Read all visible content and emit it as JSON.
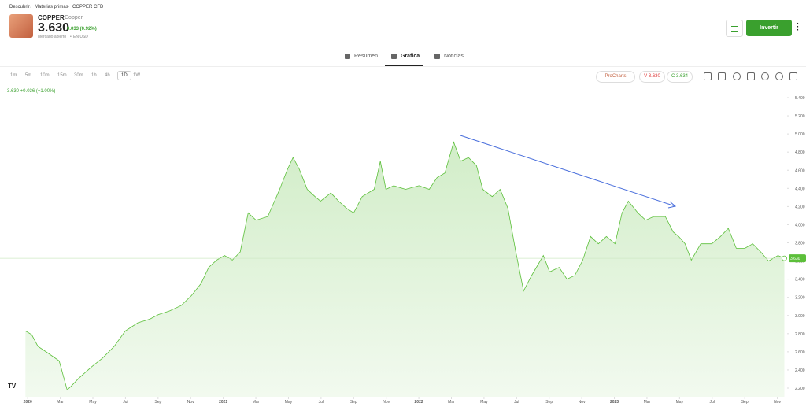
{
  "breadcrumb": [
    "Descubrir",
    "Materias primas",
    "COPPER CFD"
  ],
  "instrument": {
    "name": "COPPER",
    "subtitle": "Copper",
    "price": "3.630",
    "change": "0.033 (0.92%)",
    "status": "Mercado abierto",
    "currency": "EN USD"
  },
  "invest_button": "Invertir",
  "tabs": [
    "Resumen",
    "Gráfica",
    "Noticias"
  ],
  "timeframes": [
    "1m",
    "5m",
    "10m",
    "15m",
    "30m",
    "1h",
    "4h",
    "1D",
    "1W"
  ],
  "toolbar": {
    "procharts": "ProCharts",
    "sell": "V 3.630",
    "buy": "C 3.634"
  },
  "chart_data": {
    "type": "area",
    "legend": "3.630 +0.036 (+1.00%)",
    "color": "#5cbf3a",
    "price_tag": {
      "value": 3.63,
      "label": "3.630"
    },
    "xlim": [
      -1.7,
      46.6
    ],
    "ylim": [
      2.12,
      5.52
    ],
    "xticks": [
      {
        "value": 0,
        "label": "2020"
      },
      {
        "value": 2,
        "label": "Mar"
      },
      {
        "value": 4,
        "label": "May"
      },
      {
        "value": 6,
        "label": "Jul"
      },
      {
        "value": 8,
        "label": "Sep"
      },
      {
        "value": 10,
        "label": "Nov"
      },
      {
        "value": 12,
        "label": "2021"
      },
      {
        "value": 14,
        "label": "Mar"
      },
      {
        "value": 16,
        "label": "May"
      },
      {
        "value": 18,
        "label": "Jul"
      },
      {
        "value": 20,
        "label": "Sep"
      },
      {
        "value": 22,
        "label": "Nov"
      },
      {
        "value": 24,
        "label": "2022"
      },
      {
        "value": 26,
        "label": "Mar"
      },
      {
        "value": 28,
        "label": "May"
      },
      {
        "value": 30,
        "label": "Jul"
      },
      {
        "value": 32,
        "label": "Sep"
      },
      {
        "value": 34,
        "label": "Nov"
      },
      {
        "value": 36,
        "label": "2023"
      },
      {
        "value": 38,
        "label": "Mar"
      },
      {
        "value": 40,
        "label": "May"
      },
      {
        "value": 42,
        "label": "Jul"
      },
      {
        "value": 44,
        "label": "Sep"
      },
      {
        "value": 46,
        "label": "Nov"
      }
    ],
    "yticks": [
      {
        "value": 2.2,
        "label": "2.200"
      },
      {
        "value": 2.4,
        "label": "2.400"
      },
      {
        "value": 2.6,
        "label": "2.600"
      },
      {
        "value": 2.8,
        "label": "2.800"
      },
      {
        "value": 3.0,
        "label": "3.000"
      },
      {
        "value": 3.2,
        "label": "3.200"
      },
      {
        "value": 3.4,
        "label": "3.400"
      },
      {
        "value": 3.6,
        "label": "3.600"
      },
      {
        "value": 3.8,
        "label": "3.800"
      },
      {
        "value": 4.0,
        "label": "4.000"
      },
      {
        "value": 4.2,
        "label": "4.200"
      },
      {
        "value": 4.4,
        "label": "4.400"
      },
      {
        "value": 4.6,
        "label": "4.600"
      },
      {
        "value": 4.8,
        "label": "4.800"
      },
      {
        "value": 5.0,
        "label": "5.000"
      },
      {
        "value": 5.2,
        "label": "5.200"
      },
      {
        "value": 5.4,
        "label": "5.400"
      }
    ],
    "x": [
      -0.14,
      0.24,
      0.63,
      1.21,
      1.93,
      2.42,
      2.66,
      3.14,
      3.96,
      4.59,
      5.31,
      5.99,
      6.76,
      7.49,
      8.02,
      8.7,
      9.42,
      10.05,
      10.63,
      11.11,
      11.59,
      12.08,
      12.56,
      13.04,
      13.53,
      14.01,
      14.73,
      15.46,
      15.94,
      16.28,
      16.67,
      17.15,
      17.63,
      17.97,
      18.6,
      19.08,
      19.57,
      20.0,
      20.53,
      21.26,
      21.64,
      21.98,
      22.46,
      23.19,
      24.01,
      24.64,
      25.12,
      25.6,
      26.14,
      26.57,
      27.05,
      27.54,
      27.92,
      28.5,
      28.99,
      29.47,
      29.95,
      30.43,
      30.92,
      31.64,
      32.03,
      32.61,
      33.09,
      33.57,
      34.06,
      34.54,
      35.02,
      35.51,
      36.04,
      36.47,
      36.86,
      37.44,
      37.92,
      38.41,
      39.13,
      39.61,
      39.95,
      40.34,
      40.72,
      41.3,
      41.98,
      42.51,
      42.99,
      43.48,
      44.01,
      44.49,
      44.98,
      45.46,
      46.04,
      46.43
    ],
    "values": [
      2.83,
      2.79,
      2.66,
      2.59,
      2.5,
      2.18,
      2.22,
      2.31,
      2.44,
      2.53,
      2.66,
      2.83,
      2.92,
      2.96,
      3.01,
      3.05,
      3.11,
      3.22,
      3.35,
      3.53,
      3.61,
      3.66,
      3.61,
      3.7,
      4.13,
      4.05,
      4.09,
      4.39,
      4.61,
      4.74,
      4.61,
      4.39,
      4.31,
      4.26,
      4.35,
      4.26,
      4.18,
      4.13,
      4.31,
      4.39,
      4.7,
      4.39,
      4.43,
      4.39,
      4.43,
      4.39,
      4.52,
      4.57,
      4.91,
      4.7,
      4.74,
      4.65,
      4.39,
      4.31,
      4.39,
      4.18,
      3.7,
      3.27,
      3.44,
      3.66,
      3.48,
      3.53,
      3.4,
      3.44,
      3.61,
      3.87,
      3.79,
      3.87,
      3.79,
      4.13,
      4.26,
      4.13,
      4.05,
      4.09,
      4.09,
      3.92,
      3.87,
      3.79,
      3.61,
      3.79,
      3.79,
      3.87,
      3.96,
      3.74,
      3.74,
      3.79,
      3.7,
      3.6,
      3.66,
      3.63
    ]
  }
}
